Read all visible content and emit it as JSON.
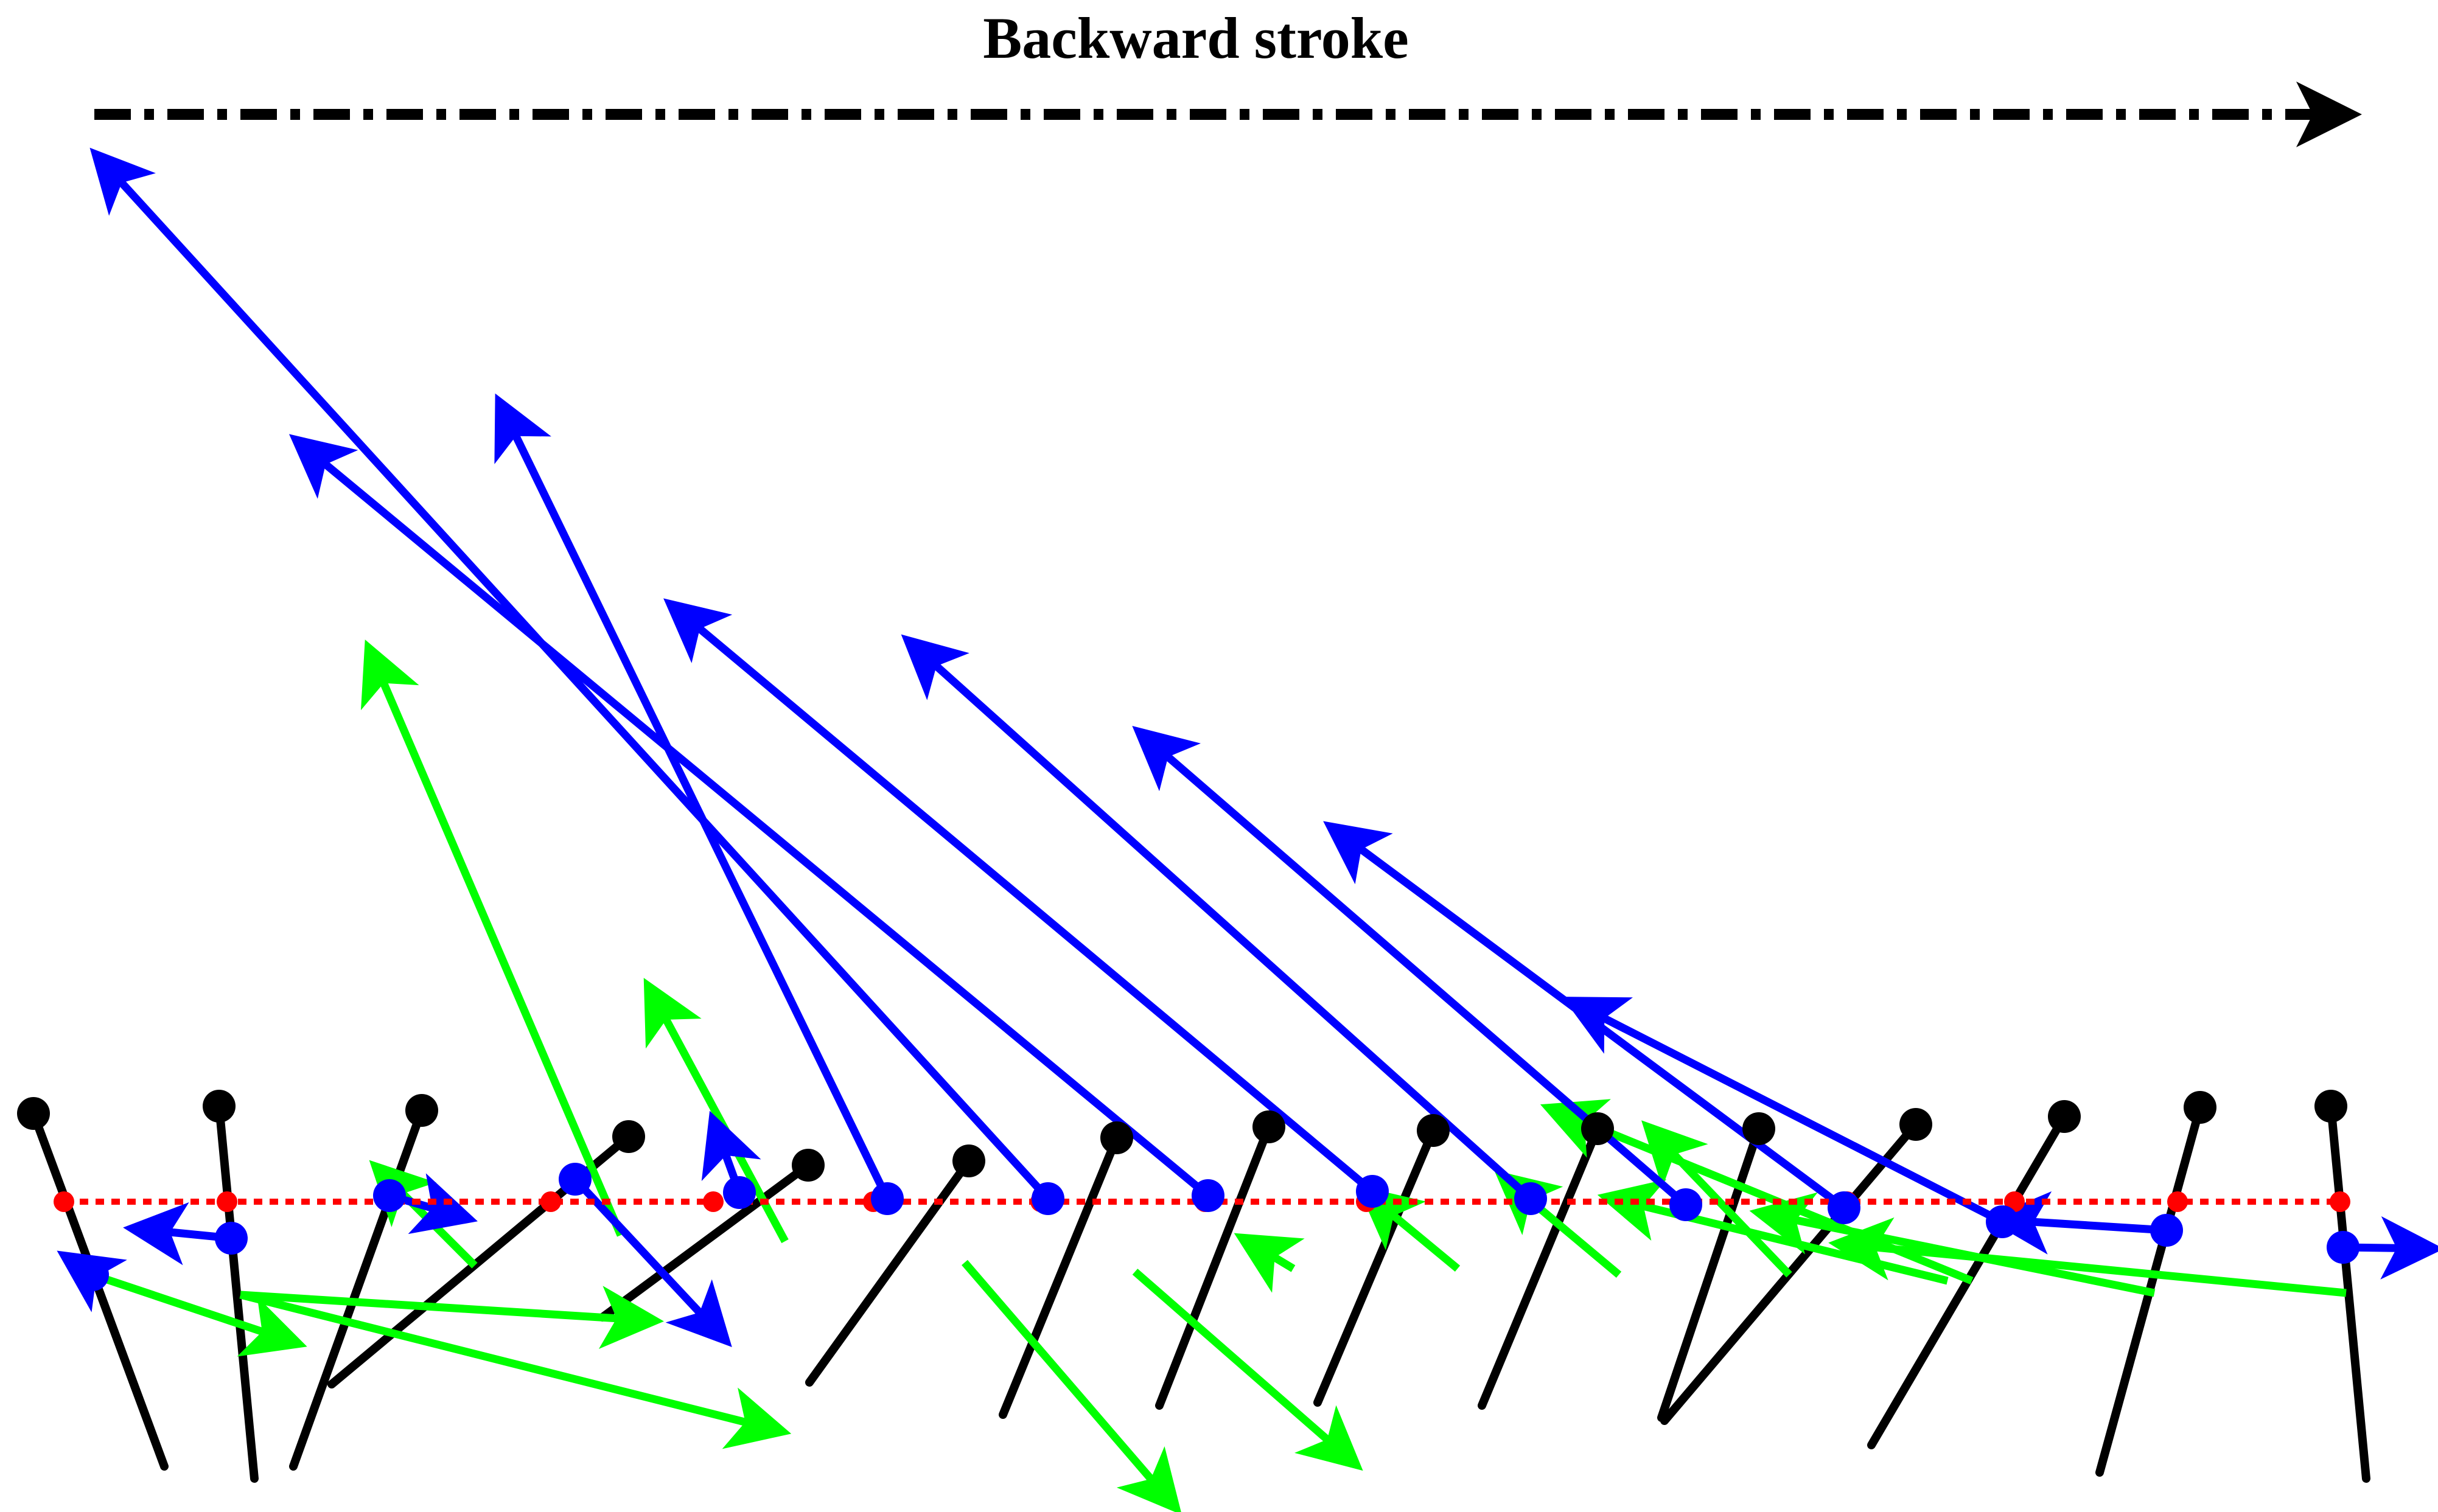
{
  "title": "Backward stroke",
  "colors": {
    "background": "#ffffff",
    "rod": "#000000",
    "blue_arrow": "#0000ff",
    "green_arrow": "#00ff00",
    "reference_line": "#ff0000",
    "stroke_arrow": "#000000"
  }
}
